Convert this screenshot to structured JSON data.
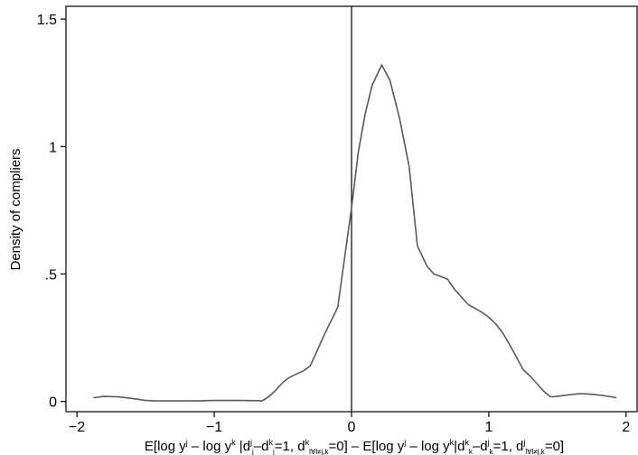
{
  "chart_data": {
    "type": "line",
    "title": "",
    "xlabel": "E[log y^j – log y^k |d^j_j–d^k_j=1, d^k_l∀l≠j,k=0] – E[log y^j – log y^k|d^k_k–d^j_k=1, d^j_l∀l≠j,k=0]",
    "xlabel_parts": [
      {
        "t": "E[log y",
        "s": "n"
      },
      {
        "t": "j",
        "s": "sup"
      },
      {
        "t": " – log y",
        "s": "n"
      },
      {
        "t": "k",
        "s": "sup"
      },
      {
        "t": " |d",
        "s": "n"
      },
      {
        "t": "j",
        "s": "sup"
      },
      {
        "t": "j",
        "s": "sub"
      },
      {
        "t": "–d",
        "s": "n"
      },
      {
        "t": "k",
        "s": "sup"
      },
      {
        "t": "j",
        "s": "sub"
      },
      {
        "t": "=1, d",
        "s": "n"
      },
      {
        "t": "k",
        "s": "sup"
      },
      {
        "t": "l∀l≠j,k",
        "s": "sub"
      },
      {
        "t": "=0] – E[log y",
        "s": "n"
      },
      {
        "t": "j",
        "s": "sup"
      },
      {
        "t": " – log y",
        "s": "n"
      },
      {
        "t": "k",
        "s": "sup"
      },
      {
        "t": "|d",
        "s": "n"
      },
      {
        "t": "k",
        "s": "sup"
      },
      {
        "t": "k",
        "s": "sub"
      },
      {
        "t": "–d",
        "s": "n"
      },
      {
        "t": "j",
        "s": "sup"
      },
      {
        "t": "k",
        "s": "sub"
      },
      {
        "t": "=1, d",
        "s": "n"
      },
      {
        "t": "j",
        "s": "sup"
      },
      {
        "t": "l∀l≠j,k",
        "s": "sub"
      },
      {
        "t": "=0]",
        "s": "n"
      }
    ],
    "ylabel": "Density of compliers",
    "xlim": [
      -2.08,
      2.08
    ],
    "ylim": [
      -0.04,
      1.55
    ],
    "x_ticks": [
      {
        "value": -2,
        "label": "−2"
      },
      {
        "value": -1,
        "label": "−1"
      },
      {
        "value": 0,
        "label": "0"
      },
      {
        "value": 1,
        "label": "1"
      },
      {
        "value": 2,
        "label": "2"
      }
    ],
    "y_ticks": [
      {
        "value": 0,
        "label": "0"
      },
      {
        "value": 0.5,
        "label": ".5"
      },
      {
        "value": 1,
        "label": "1"
      },
      {
        "value": 1.5,
        "label": "1.5"
      }
    ],
    "reference_line_x": 0,
    "grid": false,
    "series": [
      {
        "color": "#5a5a5a",
        "x": [
          -1.88,
          -1.8,
          -1.7,
          -1.6,
          -1.5,
          -1.42,
          -1.3,
          -1.2,
          -1.1,
          -1.0,
          -0.9,
          -0.8,
          -0.65,
          -0.6,
          -0.55,
          -0.5,
          -0.45,
          -0.4,
          -0.35,
          -0.3,
          -0.2,
          -0.1,
          0.0,
          0.05,
          0.1,
          0.15,
          0.22,
          0.28,
          0.35,
          0.42,
          0.48,
          0.55,
          0.6,
          0.65,
          0.7,
          0.75,
          0.8,
          0.85,
          0.9,
          0.95,
          1.0,
          1.05,
          1.1,
          1.15,
          1.2,
          1.25,
          1.3,
          1.35,
          1.4,
          1.45,
          1.5,
          1.55,
          1.6,
          1.65,
          1.7,
          1.75,
          1.8,
          1.85,
          1.93
        ],
        "y": [
          0.015,
          0.02,
          0.018,
          0.012,
          0.004,
          0.002,
          0.002,
          0.002,
          0.003,
          0.004,
          0.004,
          0.004,
          0.003,
          0.02,
          0.045,
          0.075,
          0.095,
          0.108,
          0.12,
          0.14,
          0.26,
          0.37,
          0.76,
          0.98,
          1.13,
          1.24,
          1.32,
          1.26,
          1.11,
          0.92,
          0.61,
          0.53,
          0.5,
          0.49,
          0.48,
          0.44,
          0.41,
          0.38,
          0.365,
          0.35,
          0.33,
          0.305,
          0.27,
          0.225,
          0.175,
          0.125,
          0.1,
          0.07,
          0.04,
          0.018,
          0.02,
          0.024,
          0.027,
          0.03,
          0.03,
          0.028,
          0.025,
          0.022,
          0.015
        ]
      }
    ]
  }
}
